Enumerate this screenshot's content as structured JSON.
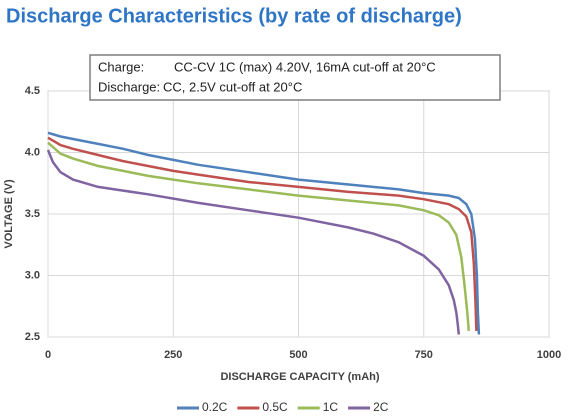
{
  "chart_data": {
    "type": "line",
    "title": "Discharge Characteristics (by rate of discharge)",
    "x_label": "DISCHARGE CAPACITY (mAh)",
    "y_label": "VOLTAGE (V)",
    "annotations": [
      {
        "label": "Charge:",
        "text": "CC-CV 1C (max) 4.20V, 16mA cut-off at 20°C"
      },
      {
        "label": "Discharge:",
        "text": "CC, 2.5V cut-off at 20°C"
      }
    ],
    "xlim": [
      0,
      1000
    ],
    "xticks": [
      0,
      250,
      500,
      750,
      1000
    ],
    "ylim": [
      2.5,
      4.5
    ],
    "yticks": [
      2.5,
      {
        "value": 3.0,
        "label": "3.0"
      },
      3.5,
      {
        "value": 4.0,
        "label": "4.0"
      },
      4.5
    ],
    "grid": true,
    "legend": "bottom",
    "series": [
      {
        "name": "0.2C",
        "color": "#4f81bd",
        "x": [
          0,
          25,
          50,
          100,
          150,
          200,
          250,
          300,
          400,
          500,
          600,
          700,
          750,
          800,
          820,
          835,
          845,
          852,
          856,
          858,
          860
        ],
        "values": [
          4.16,
          4.13,
          4.11,
          4.07,
          4.03,
          3.98,
          3.94,
          3.9,
          3.84,
          3.78,
          3.74,
          3.7,
          3.67,
          3.65,
          3.63,
          3.58,
          3.5,
          3.3,
          3.0,
          2.7,
          2.52
        ]
      },
      {
        "name": "0.5C",
        "color": "#c0504d",
        "x": [
          0,
          25,
          50,
          100,
          150,
          200,
          250,
          300,
          400,
          500,
          600,
          700,
          750,
          800,
          820,
          835,
          845,
          850,
          853,
          855
        ],
        "values": [
          4.12,
          4.06,
          4.03,
          3.98,
          3.93,
          3.89,
          3.85,
          3.82,
          3.76,
          3.72,
          3.68,
          3.65,
          3.62,
          3.58,
          3.54,
          3.48,
          3.35,
          3.1,
          2.8,
          2.55
        ]
      },
      {
        "name": "1C",
        "color": "#9bbb59",
        "x": [
          0,
          25,
          50,
          100,
          150,
          200,
          250,
          300,
          400,
          500,
          600,
          700,
          750,
          780,
          800,
          815,
          825,
          832,
          837,
          840
        ],
        "values": [
          4.08,
          3.99,
          3.95,
          3.89,
          3.85,
          3.81,
          3.78,
          3.75,
          3.7,
          3.65,
          3.61,
          3.57,
          3.53,
          3.49,
          3.43,
          3.33,
          3.15,
          2.9,
          2.7,
          2.55
        ]
      },
      {
        "name": "2C",
        "color": "#8064a2",
        "x": [
          0,
          10,
          25,
          50,
          100,
          150,
          200,
          300,
          400,
          500,
          600,
          650,
          700,
          750,
          780,
          800,
          810,
          815,
          818,
          820
        ],
        "values": [
          4.02,
          3.92,
          3.84,
          3.78,
          3.72,
          3.69,
          3.66,
          3.59,
          3.53,
          3.47,
          3.39,
          3.34,
          3.27,
          3.16,
          3.05,
          2.92,
          2.8,
          2.7,
          2.6,
          2.52
        ]
      }
    ]
  }
}
